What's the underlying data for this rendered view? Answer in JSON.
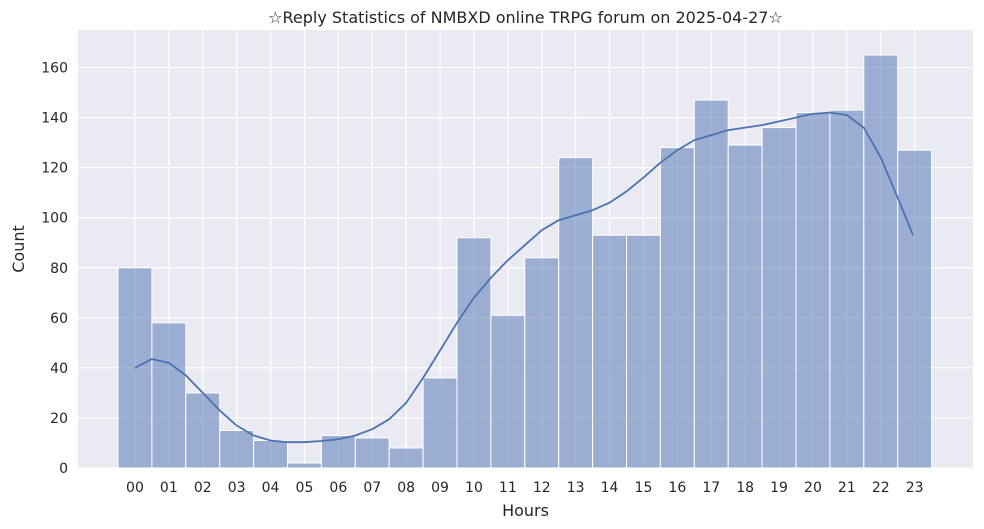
{
  "chart_data": {
    "type": "bar",
    "title": "☆Reply Statistics of NMBXD online TRPG forum on 2025-04-27☆",
    "xlabel": "Hours",
    "ylabel": "Count",
    "categories": [
      "00",
      "01",
      "02",
      "03",
      "04",
      "05",
      "06",
      "07",
      "08",
      "09",
      "10",
      "11",
      "12",
      "13",
      "14",
      "15",
      "16",
      "17",
      "18",
      "19",
      "20",
      "21",
      "22",
      "23"
    ],
    "values": [
      80,
      58,
      30,
      15,
      11,
      2,
      13,
      12,
      8,
      36,
      92,
      61,
      84,
      124,
      93,
      93,
      128,
      147,
      129,
      136,
      142,
      143,
      165,
      127
    ],
    "kde": [
      [
        0,
        40
      ],
      [
        0.5,
        43.5
      ],
      [
        1,
        42
      ],
      [
        1.5,
        37
      ],
      [
        2,
        30
      ],
      [
        2.5,
        23
      ],
      [
        3,
        17
      ],
      [
        3.5,
        13
      ],
      [
        4,
        11
      ],
      [
        4.5,
        10.3
      ],
      [
        5,
        10.3
      ],
      [
        5.5,
        10.8
      ],
      [
        6,
        11.5
      ],
      [
        6.5,
        13
      ],
      [
        7,
        15.5
      ],
      [
        7.5,
        19.5
      ],
      [
        8,
        26
      ],
      [
        8.5,
        36
      ],
      [
        9,
        47
      ],
      [
        9.5,
        58
      ],
      [
        10,
        68
      ],
      [
        10.5,
        76
      ],
      [
        11,
        83
      ],
      [
        11.5,
        89
      ],
      [
        12,
        95
      ],
      [
        12.5,
        99
      ],
      [
        13,
        101
      ],
      [
        13.5,
        103
      ],
      [
        14,
        106
      ],
      [
        14.5,
        110.5
      ],
      [
        15,
        116
      ],
      [
        15.5,
        122
      ],
      [
        16,
        127
      ],
      [
        16.5,
        131
      ],
      [
        17,
        133
      ],
      [
        17.5,
        135
      ],
      [
        18,
        136
      ],
      [
        18.5,
        137
      ],
      [
        19,
        138.5
      ],
      [
        19.5,
        140
      ],
      [
        20,
        141.5
      ],
      [
        20.5,
        142
      ],
      [
        21,
        141
      ],
      [
        21.5,
        136
      ],
      [
        22,
        124
      ],
      [
        22.5,
        108
      ],
      [
        22.95,
        93
      ]
    ],
    "ylim": [
      0,
      175
    ],
    "yticks": [
      0,
      20,
      40,
      60,
      80,
      100,
      120,
      140,
      160
    ],
    "grid": true,
    "colors": {
      "background": "#eaeaf2",
      "grid": "#ffffff",
      "bar": "#4c72b0",
      "kde_line": "#4c72b0"
    }
  }
}
